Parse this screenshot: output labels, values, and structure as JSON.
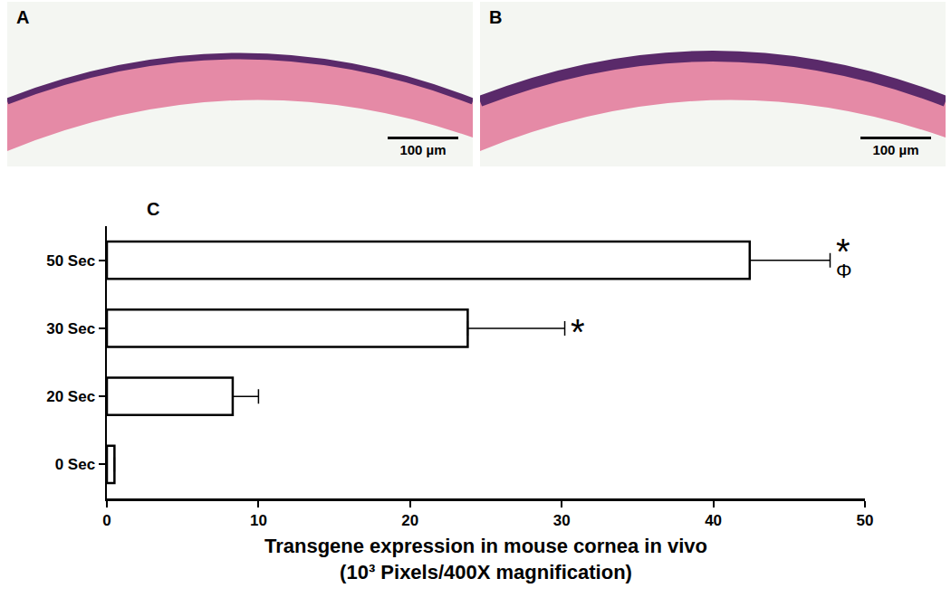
{
  "panels": [
    {
      "label": "A",
      "scale_bar": "100 µm"
    },
    {
      "label": "B",
      "scale_bar": "100 µm"
    }
  ],
  "chart_data": {
    "type": "bar",
    "orientation": "horizontal",
    "panel_label": "C",
    "categories": [
      "0 Sec",
      "20 Sec",
      "30 Sec",
      "50 Sec"
    ],
    "values": [
      0.5,
      8.3,
      23.8,
      42.4
    ],
    "errors": [
      0,
      1.7,
      6.4,
      5.3
    ],
    "color": "#ffffff",
    "xlim": [
      0,
      50
    ],
    "xticks": [
      0,
      10,
      20,
      30,
      40,
      50
    ],
    "x_label": [
      "Transgene expression in mouse cornea in vivo",
      "(10³ Pixels/400X magnification)"
    ],
    "annotations": [
      {
        "category": "30 Sec",
        "text": "*"
      },
      {
        "category": "50 Sec",
        "text": "*"
      },
      {
        "category": "50 Sec",
        "text": "Φ"
      }
    ],
    "grid": false
  }
}
